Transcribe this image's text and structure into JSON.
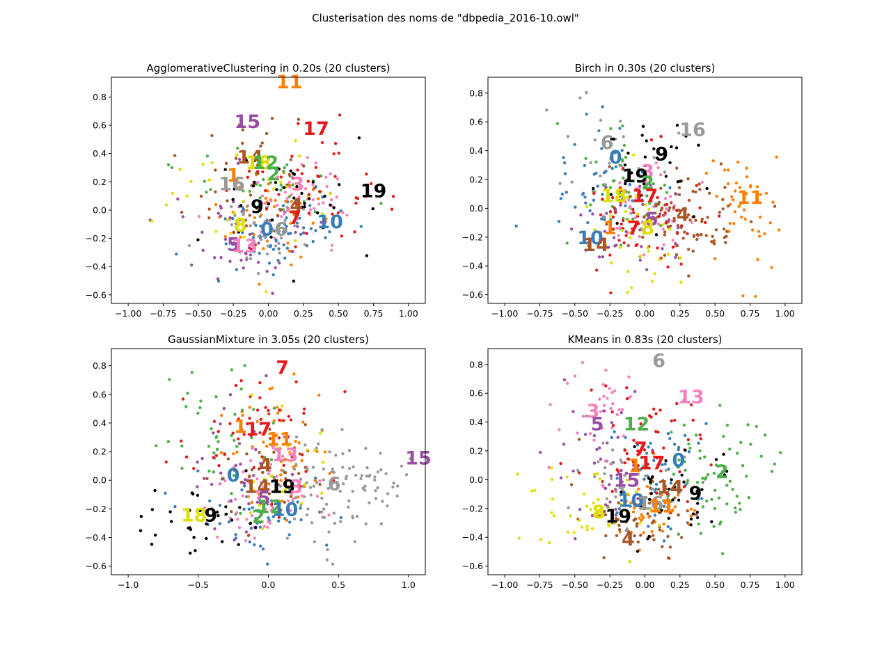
{
  "figure": {
    "title": "Clusterisation des noms de \"dbpedia_2016-10.owl\""
  },
  "palette": [
    "#377eb8",
    "#ff7f00",
    "#4daf4a",
    "#f781bf",
    "#a65628",
    "#984ea3",
    "#999999",
    "#e41a1c",
    "#dede00",
    "#000000"
  ],
  "chart_data": [
    {
      "type": "scatter",
      "title": "AgglomerativeClustering in 0.20s (20 clusters)",
      "xlim": [
        -1.12,
        1.12
      ],
      "ylim": [
        -0.66,
        0.94
      ],
      "xticks": [
        -1.0,
        -0.75,
        -0.5,
        -0.25,
        0.0,
        0.25,
        0.5,
        0.75,
        1.0
      ],
      "xtick_labels": [
        "−1.00",
        "−0.75",
        "−0.50",
        "−0.25",
        "0.00",
        "0.25",
        "0.50",
        "0.75",
        "1.00"
      ],
      "yticks": [
        -0.6,
        -0.4,
        -0.2,
        0.0,
        0.2,
        0.4,
        0.6,
        0.8
      ],
      "ytick_labels": [
        "−0.6",
        "−0.4",
        "−0.2",
        "0.0",
        "0.2",
        "0.4",
        "0.6",
        "0.8"
      ],
      "grid": false,
      "labels": [
        {
          "text": "11",
          "x": 0.15,
          "y": 0.91
        },
        {
          "text": "17",
          "x": 0.34,
          "y": 0.58
        },
        {
          "text": "15",
          "x": -0.15,
          "y": 0.63
        },
        {
          "text": "14",
          "x": -0.13,
          "y": 0.38
        },
        {
          "text": "18",
          "x": -0.07,
          "y": 0.34
        },
        {
          "text": "12",
          "x": -0.02,
          "y": 0.34
        },
        {
          "text": "2",
          "x": 0.04,
          "y": 0.26
        },
        {
          "text": "1",
          "x": -0.25,
          "y": 0.25
        },
        {
          "text": "16",
          "x": -0.26,
          "y": 0.19
        },
        {
          "text": "3",
          "x": 0.21,
          "y": 0.19
        },
        {
          "text": "19",
          "x": 0.75,
          "y": 0.14
        },
        {
          "text": "9",
          "x": -0.08,
          "y": 0.03
        },
        {
          "text": "4",
          "x": 0.2,
          "y": 0.04
        },
        {
          "text": "8",
          "x": -0.2,
          "y": -0.1
        },
        {
          "text": "7",
          "x": 0.19,
          "y": -0.05
        },
        {
          "text": "10",
          "x": 0.44,
          "y": -0.08
        },
        {
          "text": "0",
          "x": -0.01,
          "y": -0.13
        },
        {
          "text": "6",
          "x": 0.09,
          "y": -0.13
        },
        {
          "text": "5",
          "x": -0.25,
          "y": -0.24
        },
        {
          "text": "13",
          "x": -0.17,
          "y": -0.25
        }
      ],
      "clusters": [
        {
          "cx": 0.05,
          "cy": -0.15,
          "sx": 0.22,
          "sy": 0.13,
          "n": 70
        },
        {
          "cx": 0.1,
          "cy": 0.0,
          "sx": 0.2,
          "sy": 0.18,
          "n": 45
        },
        {
          "cx": 0.0,
          "cy": 0.2,
          "sx": 0.25,
          "sy": 0.15,
          "n": 35
        },
        {
          "cx": 0.2,
          "cy": 0.05,
          "sx": 0.22,
          "sy": 0.18,
          "n": 55
        },
        {
          "cx": -0.1,
          "cy": 0.15,
          "sx": 0.25,
          "sy": 0.22,
          "n": 40
        },
        {
          "cx": -0.25,
          "cy": -0.2,
          "sx": 0.25,
          "sy": 0.2,
          "n": 45
        },
        {
          "cx": -0.05,
          "cy": -0.2,
          "sx": 0.2,
          "sy": 0.15,
          "n": 40
        },
        {
          "cx": 0.3,
          "cy": 0.1,
          "sx": 0.3,
          "sy": 0.25,
          "n": 45
        },
        {
          "cx": -0.2,
          "cy": 0.05,
          "sx": 0.3,
          "sy": 0.25,
          "n": 30
        },
        {
          "cx": 0.3,
          "cy": 0.1,
          "sx": 0.35,
          "sy": 0.22,
          "n": 40
        }
      ]
    },
    {
      "type": "scatter",
      "title": "Birch in 0.30s (20 clusters)",
      "xlim": [
        -1.12,
        1.12
      ],
      "ylim": [
        -0.66,
        0.91
      ],
      "xticks": [
        -1.0,
        -0.75,
        -0.5,
        -0.25,
        0.0,
        0.25,
        0.5,
        0.75,
        1.0
      ],
      "xtick_labels": [
        "−1.00",
        "−0.75",
        "−0.50",
        "−0.25",
        "0.00",
        "0.25",
        "0.50",
        "0.75",
        "1.00"
      ],
      "yticks": [
        -0.6,
        -0.4,
        -0.2,
        0.0,
        0.2,
        0.4,
        0.6,
        0.8
      ],
      "ytick_labels": [
        "−0.6",
        "−0.4",
        "−0.2",
        "0.0",
        "0.2",
        "0.4",
        "0.6",
        "0.8"
      ],
      "grid": false,
      "labels": [
        {
          "text": "16",
          "x": 0.34,
          "y": 0.55
        },
        {
          "text": "6",
          "x": -0.27,
          "y": 0.46
        },
        {
          "text": "0",
          "x": -0.21,
          "y": 0.36
        },
        {
          "text": "9",
          "x": 0.12,
          "y": 0.38
        },
        {
          "text": "3",
          "x": 0.02,
          "y": 0.26
        },
        {
          "text": "19",
          "x": -0.07,
          "y": 0.23
        },
        {
          "text": "2",
          "x": 0.02,
          "y": 0.18
        },
        {
          "text": "18",
          "x": -0.22,
          "y": 0.09
        },
        {
          "text": "17",
          "x": 0.0,
          "y": 0.09
        },
        {
          "text": "11",
          "x": 0.75,
          "y": 0.08
        },
        {
          "text": "4",
          "x": 0.27,
          "y": -0.04
        },
        {
          "text": "5",
          "x": 0.05,
          "y": -0.07
        },
        {
          "text": "10",
          "x": -0.39,
          "y": -0.2
        },
        {
          "text": "1",
          "x": -0.25,
          "y": -0.13
        },
        {
          "text": "7",
          "x": -0.08,
          "y": -0.13
        },
        {
          "text": "8",
          "x": 0.02,
          "y": -0.13
        },
        {
          "text": "14",
          "x": -0.35,
          "y": -0.25
        }
      ],
      "clusters": [
        {
          "cx": -0.3,
          "cy": 0.2,
          "sx": 0.2,
          "sy": 0.22,
          "n": 45
        },
        {
          "cx": 0.7,
          "cy": 0.0,
          "sx": 0.15,
          "sy": 0.2,
          "n": 45
        },
        {
          "cx": -0.15,
          "cy": 0.1,
          "sx": 0.18,
          "sy": 0.2,
          "n": 45
        },
        {
          "cx": 0.0,
          "cy": 0.0,
          "sx": 0.15,
          "sy": 0.15,
          "n": 40
        },
        {
          "cx": 0.25,
          "cy": -0.05,
          "sx": 0.2,
          "sy": 0.15,
          "n": 95
        },
        {
          "cx": -0.1,
          "cy": -0.1,
          "sx": 0.2,
          "sy": 0.15,
          "n": 40
        },
        {
          "cx": -0.2,
          "cy": 0.4,
          "sx": 0.2,
          "sy": 0.25,
          "n": 30
        },
        {
          "cx": 0.0,
          "cy": -0.1,
          "sx": 0.2,
          "sy": 0.2,
          "n": 60
        },
        {
          "cx": -0.05,
          "cy": -0.2,
          "sx": 0.15,
          "sy": 0.15,
          "n": 35
        },
        {
          "cx": 0.05,
          "cy": 0.3,
          "sx": 0.2,
          "sy": 0.2,
          "n": 30
        }
      ]
    },
    {
      "type": "scatter",
      "title": "GaussianMixture in 3.05s (20 clusters)",
      "xlim": [
        -1.12,
        1.12
      ],
      "ylim": [
        -0.66,
        0.92
      ],
      "xticks": [
        -1.0,
        -0.5,
        0.0,
        0.5,
        1.0
      ],
      "xtick_labels": [
        "−1.0",
        "−0.5",
        "0.0",
        "0.5",
        "1.0"
      ],
      "yticks": [
        -0.6,
        -0.4,
        -0.2,
        0.0,
        0.2,
        0.4,
        0.6,
        0.8
      ],
      "ytick_labels": [
        "−0.6",
        "−0.4",
        "−0.2",
        "0.0",
        "0.2",
        "0.4",
        "0.6",
        "0.8"
      ],
      "grid": false,
      "labels": [
        {
          "text": "7",
          "x": 0.1,
          "y": 0.79
        },
        {
          "text": "15",
          "x": 1.07,
          "y": 0.16
        },
        {
          "text": "1",
          "x": -0.2,
          "y": 0.38
        },
        {
          "text": "17",
          "x": -0.07,
          "y": 0.36
        },
        {
          "text": "11",
          "x": 0.08,
          "y": 0.29
        },
        {
          "text": "13",
          "x": 0.12,
          "y": 0.18
        },
        {
          "text": "4",
          "x": -0.02,
          "y": 0.11
        },
        {
          "text": "0",
          "x": -0.25,
          "y": 0.04
        },
        {
          "text": "6",
          "x": 0.47,
          "y": -0.02
        },
        {
          "text": "14",
          "x": -0.08,
          "y": -0.04
        },
        {
          "text": "19",
          "x": 0.1,
          "y": -0.04
        },
        {
          "text": "3",
          "x": 0.2,
          "y": -0.04
        },
        {
          "text": "5",
          "x": -0.03,
          "y": -0.12
        },
        {
          "text": "18",
          "x": -0.53,
          "y": -0.24
        },
        {
          "text": "9",
          "x": -0.41,
          "y": -0.24
        },
        {
          "text": "2",
          "x": -0.07,
          "y": -0.25
        },
        {
          "text": "12",
          "x": 0.01,
          "y": -0.18
        },
        {
          "text": "10",
          "x": 0.12,
          "y": -0.2
        }
      ],
      "clusters": [
        {
          "cx": -0.1,
          "cy": -0.2,
          "sx": 0.2,
          "sy": 0.15,
          "n": 50
        },
        {
          "cx": 0.05,
          "cy": 0.2,
          "sx": 0.2,
          "sy": 0.25,
          "n": 60
        },
        {
          "cx": -0.3,
          "cy": 0.3,
          "sx": 0.25,
          "sy": 0.25,
          "n": 40
        },
        {
          "cx": -0.05,
          "cy": -0.15,
          "sx": 0.2,
          "sy": 0.15,
          "n": 60
        },
        {
          "cx": 0.0,
          "cy": 0.0,
          "sx": 0.2,
          "sy": 0.2,
          "n": 40
        },
        {
          "cx": -0.2,
          "cy": 0.05,
          "sx": 0.2,
          "sy": 0.25,
          "n": 30
        },
        {
          "cx": 0.45,
          "cy": -0.05,
          "sx": 0.25,
          "sy": 0.18,
          "n": 110
        },
        {
          "cx": -0.1,
          "cy": 0.35,
          "sx": 0.25,
          "sy": 0.22,
          "n": 55
        },
        {
          "cx": 0.1,
          "cy": 0.05,
          "sx": 0.15,
          "sy": 0.2,
          "n": 30
        },
        {
          "cx": -0.4,
          "cy": -0.3,
          "sx": 0.25,
          "sy": 0.15,
          "n": 35
        }
      ]
    },
    {
      "type": "scatter",
      "title": "KMeans in 0.83s (20 clusters)",
      "xlim": [
        -1.12,
        1.12
      ],
      "ylim": [
        -0.66,
        0.91
      ],
      "xticks": [
        -1.0,
        -0.75,
        -0.5,
        -0.25,
        0.0,
        0.25,
        0.5,
        0.75,
        1.0
      ],
      "xtick_labels": [
        "−1.00",
        "−0.75",
        "−0.50",
        "−0.25",
        "0.00",
        "0.25",
        "0.50",
        "0.75",
        "1.00"
      ],
      "yticks": [
        -0.6,
        -0.4,
        -0.2,
        0.0,
        0.2,
        0.4,
        0.6,
        0.8
      ],
      "ytick_labels": [
        "−0.6",
        "−0.4",
        "−0.2",
        "0.0",
        "0.2",
        "0.4",
        "0.6",
        "0.8"
      ],
      "grid": false,
      "labels": [
        {
          "text": "6",
          "x": 0.1,
          "y": 0.83
        },
        {
          "text": "13",
          "x": 0.33,
          "y": 0.58
        },
        {
          "text": "3",
          "x": -0.37,
          "y": 0.48
        },
        {
          "text": "5",
          "x": -0.34,
          "y": 0.39
        },
        {
          "text": "12",
          "x": -0.06,
          "y": 0.39
        },
        {
          "text": "7",
          "x": -0.03,
          "y": 0.22
        },
        {
          "text": "0",
          "x": 0.24,
          "y": 0.14
        },
        {
          "text": "17",
          "x": 0.05,
          "y": 0.12
        },
        {
          "text": "1",
          "x": -0.07,
          "y": 0.1
        },
        {
          "text": "2",
          "x": 0.55,
          "y": 0.06
        },
        {
          "text": "15",
          "x": -0.13,
          "y": 0.0
        },
        {
          "text": "14",
          "x": 0.18,
          "y": -0.05
        },
        {
          "text": "9",
          "x": 0.36,
          "y": -0.09
        },
        {
          "text": "10",
          "x": -0.1,
          "y": -0.14
        },
        {
          "text": "16",
          "x": 0.04,
          "y": -0.16
        },
        {
          "text": "11",
          "x": 0.12,
          "y": -0.18
        },
        {
          "text": "8",
          "x": -0.33,
          "y": -0.22
        },
        {
          "text": "19",
          "x": -0.19,
          "y": -0.25
        },
        {
          "text": "4",
          "x": -0.12,
          "y": -0.41
        }
      ],
      "clusters": [
        {
          "cx": 0.1,
          "cy": 0.05,
          "sx": 0.18,
          "sy": 0.2,
          "n": 50
        },
        {
          "cx": 0.05,
          "cy": -0.2,
          "sx": 0.15,
          "sy": 0.12,
          "n": 50
        },
        {
          "cx": 0.5,
          "cy": 0.05,
          "sx": 0.22,
          "sy": 0.2,
          "n": 70
        },
        {
          "cx": -0.3,
          "cy": 0.45,
          "sx": 0.18,
          "sy": 0.2,
          "n": 40
        },
        {
          "cx": -0.05,
          "cy": -0.25,
          "sx": 0.18,
          "sy": 0.15,
          "n": 60
        },
        {
          "cx": -0.3,
          "cy": 0.1,
          "sx": 0.18,
          "sy": 0.25,
          "n": 45
        },
        {
          "cx": -0.1,
          "cy": 0.0,
          "sx": 0.18,
          "sy": 0.18,
          "n": 40
        },
        {
          "cx": 0.0,
          "cy": 0.25,
          "sx": 0.2,
          "sy": 0.22,
          "n": 55
        },
        {
          "cx": -0.4,
          "cy": -0.2,
          "sx": 0.25,
          "sy": 0.15,
          "n": 45
        },
        {
          "cx": 0.25,
          "cy": -0.1,
          "sx": 0.2,
          "sy": 0.15,
          "n": 45
        }
      ]
    }
  ]
}
